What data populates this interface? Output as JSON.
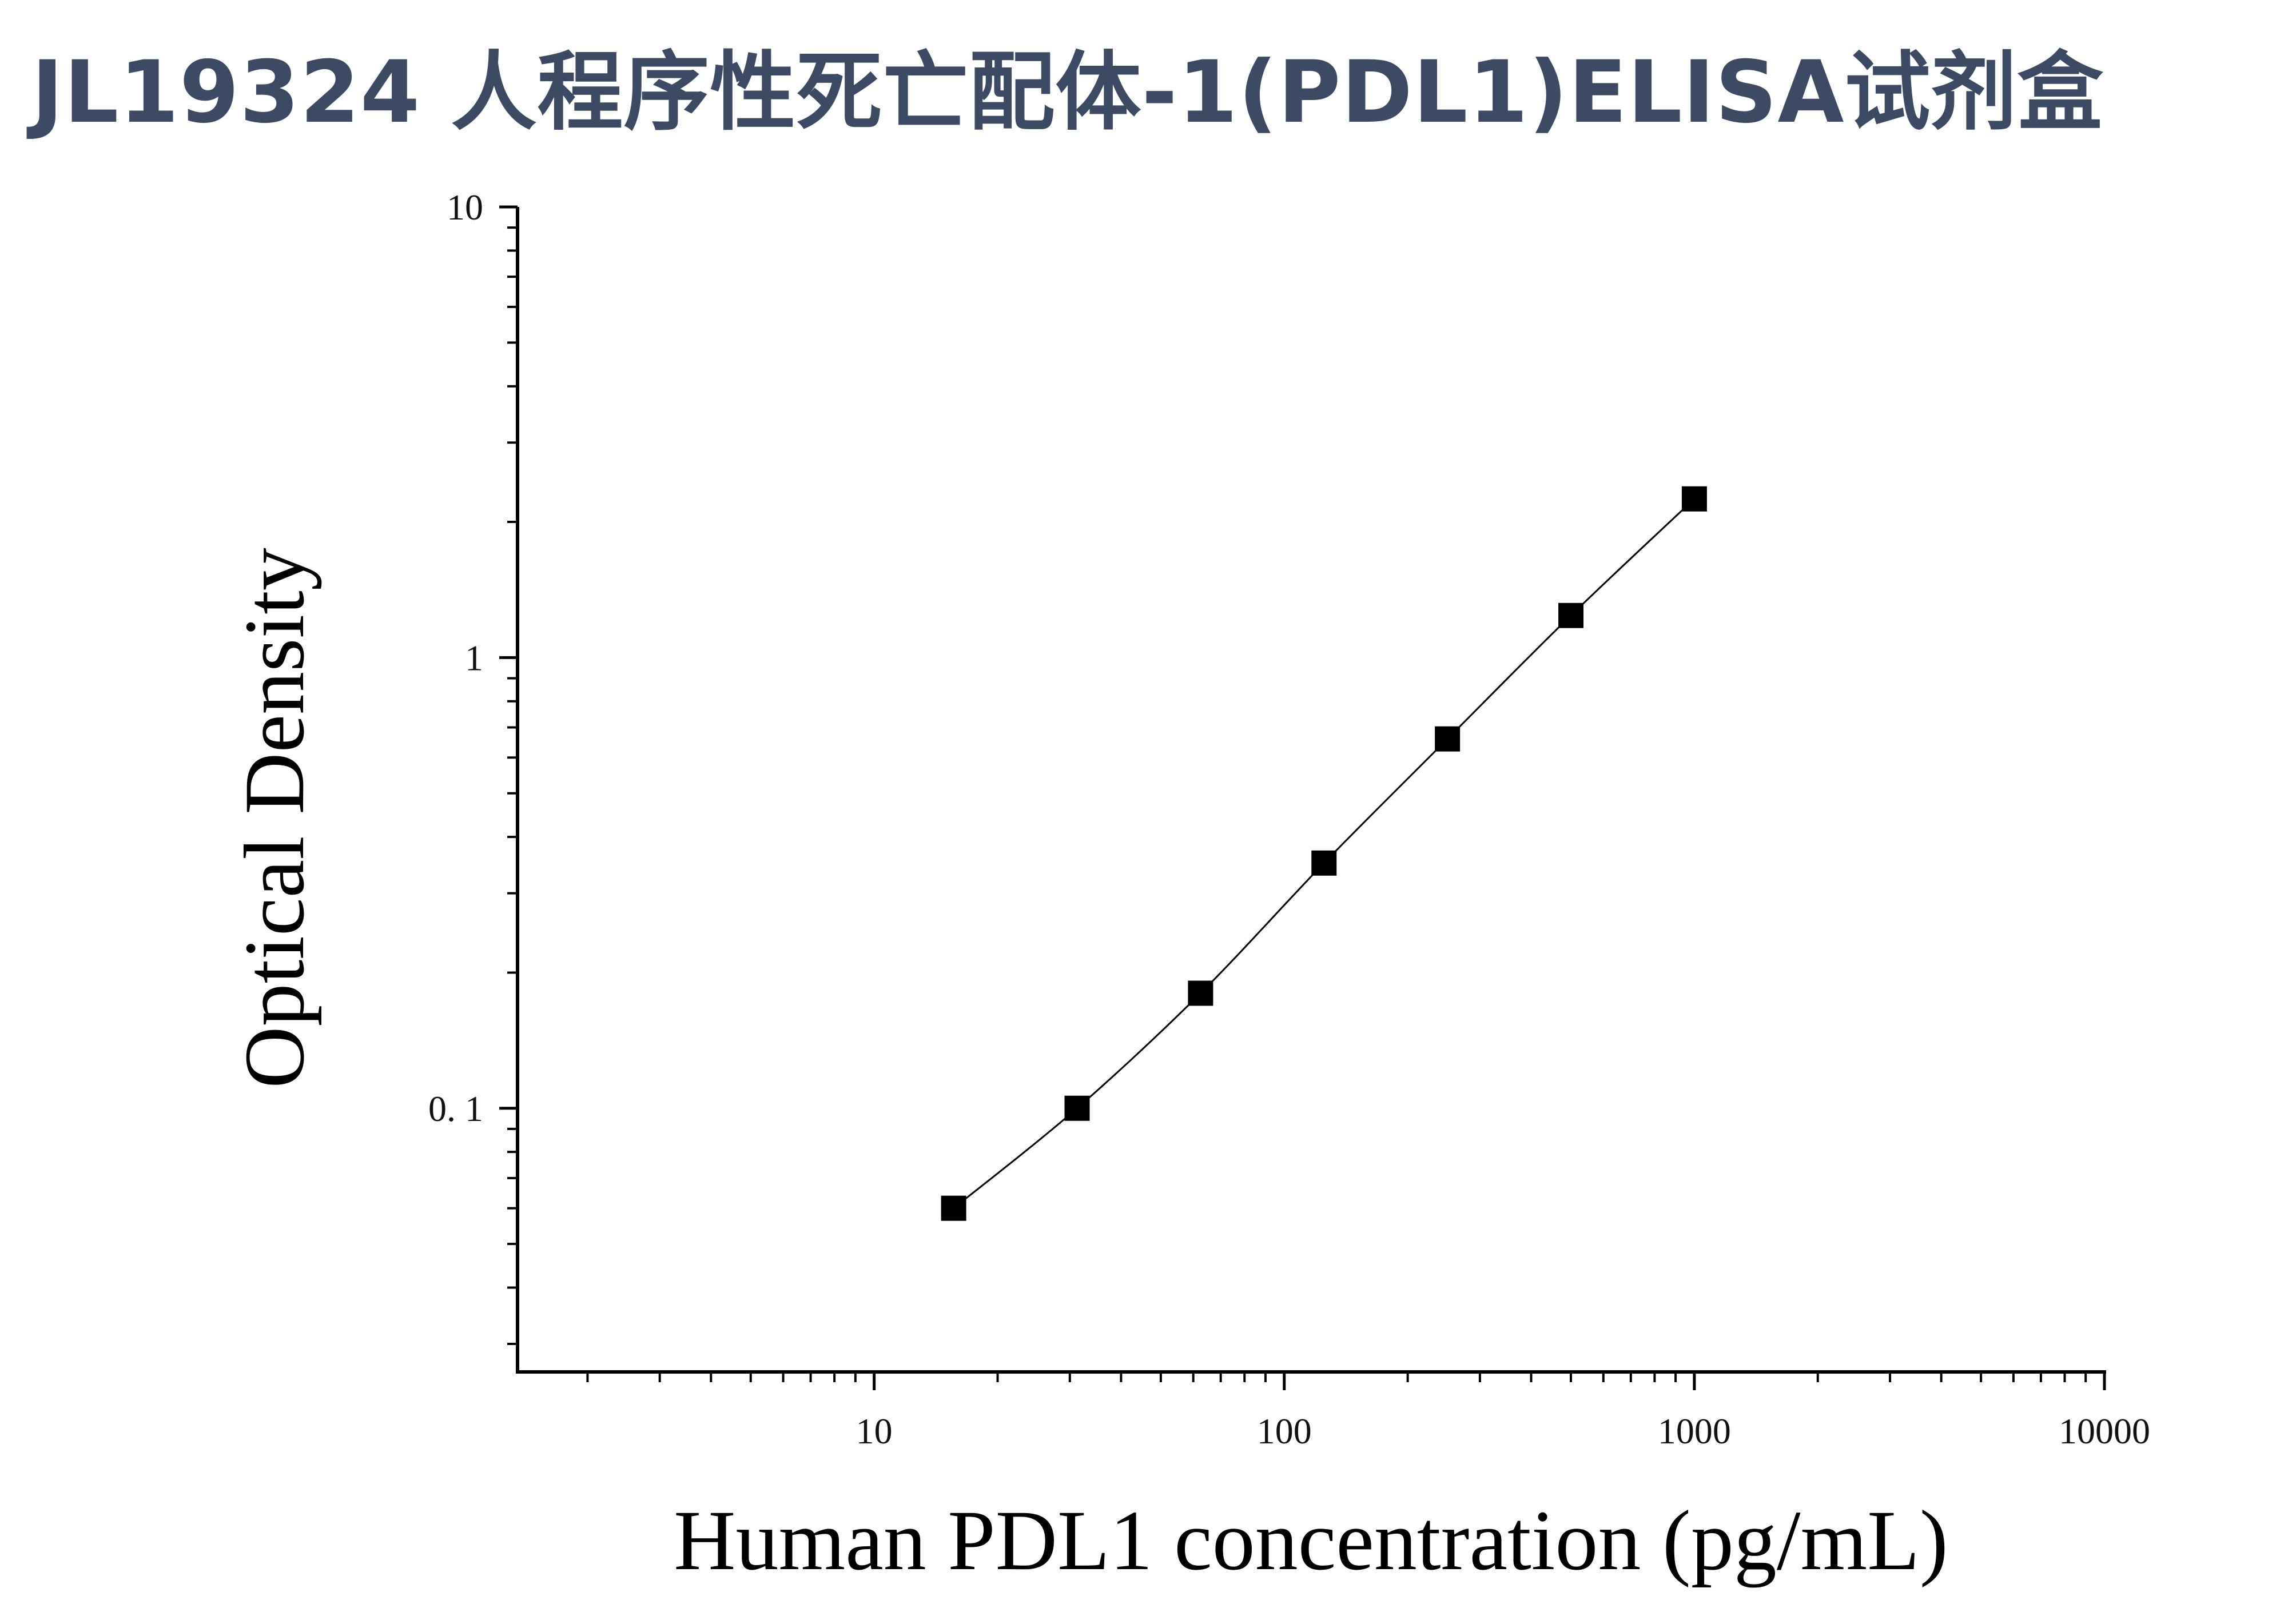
{
  "header": {
    "title": "JL19324 人程序性死亡配体-1(PDL1)ELISA试剂盒"
  },
  "chart_data": {
    "type": "scatter",
    "title": "JL19324 人程序性死亡配体-1(PDL1)ELISA试剂盒",
    "xlabel": "Human PDL1 concentration (pg/mL)",
    "ylabel": "Optical Density",
    "xscale": "log",
    "yscale": "log",
    "xlim": [
      1.35,
      10000
    ],
    "ylim": [
      0.026,
      10
    ],
    "x_ticks": [
      10,
      100,
      1000,
      10000
    ],
    "x_tick_labels": [
      "10",
      "100",
      "1000",
      "10000"
    ],
    "y_ticks": [
      0.1,
      1,
      10
    ],
    "y_tick_labels": [
      "0. 1",
      "1",
      "10"
    ],
    "grid": false,
    "series": [
      {
        "x": [
          15.625,
          31.25,
          62.5,
          125,
          250,
          500,
          1000
        ],
        "y": [
          0.06,
          0.1,
          0.18,
          0.35,
          0.66,
          1.24,
          2.25
        ],
        "marker": "square",
        "line": "fitted curve"
      }
    ],
    "colors": {
      "marker": "#000000",
      "line": "#000000",
      "axis": "#000000",
      "title": "#3d4a63"
    }
  }
}
